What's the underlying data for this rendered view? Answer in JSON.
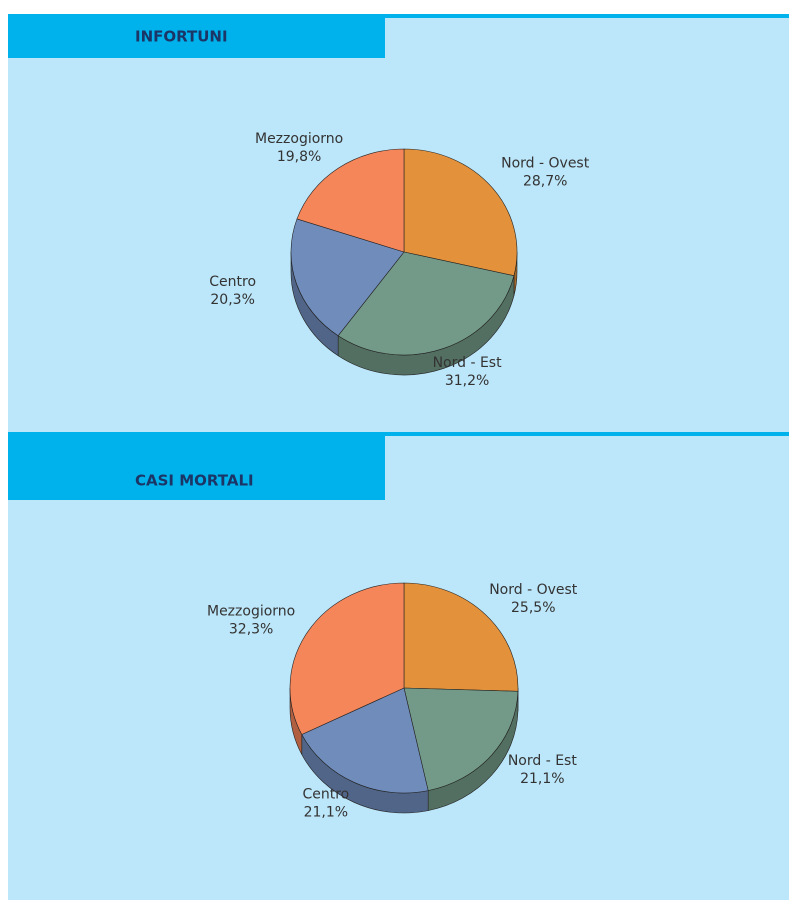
{
  "chart_data": [
    {
      "type": "pie",
      "title": "INFORTUNI",
      "categories": [
        "Nord - Ovest",
        "Nord - Est",
        "Centro",
        "Mezzogiorno"
      ],
      "values": [
        28.7,
        31.2,
        20.3,
        19.8
      ],
      "value_labels": [
        "28,7%",
        "31,2%",
        "20,3%",
        "19,8%"
      ],
      "colors": [
        "#e3913a",
        "#739a88",
        "#6f8cbb",
        "#f5865a"
      ]
    },
    {
      "type": "pie",
      "title": "CASI MORTALI",
      "categories": [
        "Nord - Ovest",
        "Nord - Est",
        "Centro",
        "Mezzogiorno"
      ],
      "values": [
        25.5,
        21.1,
        21.1,
        32.3
      ],
      "value_labels": [
        "25,5%",
        "21,1%",
        "21,1%",
        "32,3%"
      ],
      "colors": [
        "#e3913a",
        "#739a88",
        "#6f8cbb",
        "#f5865a"
      ]
    }
  ]
}
